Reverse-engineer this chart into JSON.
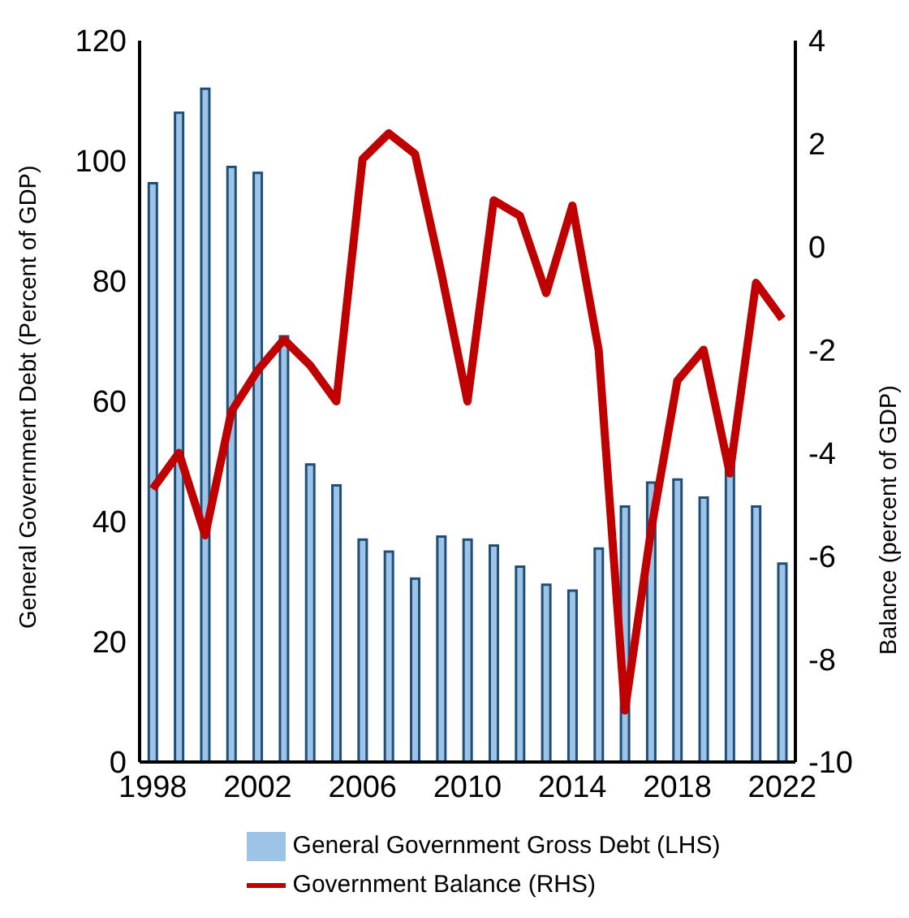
{
  "chart_data": {
    "type": "bar",
    "xlabel": null,
    "ylabel": "General Government Debt (Percent of GDP)",
    "y2label": "Balance (percent of GDP)",
    "categories": [
      "1998",
      null,
      null,
      null,
      "2002",
      null,
      null,
      null,
      "2006",
      null,
      null,
      null,
      "2010",
      null,
      null,
      null,
      "2014",
      null,
      null,
      null,
      "2018",
      null,
      null,
      null,
      "2022"
    ],
    "series": [
      {
        "name": "General Government Gross Debt (LHS)",
        "color": "#9dc3e6",
        "values": [
          96.3,
          108,
          112,
          99,
          98,
          70.8,
          49.5,
          46,
          37,
          35,
          30.5,
          37.5,
          37,
          36,
          32.5,
          29.5,
          28.5,
          35.5,
          42.5,
          46.5,
          47,
          44,
          52,
          42.5,
          33
        ]
      },
      {
        "name": "Government Balance (RHS)",
        "type": "line",
        "axis": "y2",
        "color": "#c00000",
        "values": [
          -4.7,
          -4.0,
          -5.6,
          -3.2,
          -2.4,
          -1.8,
          -2.3,
          -3.0,
          1.7,
          2.2,
          1.8,
          -0.5,
          -3.0,
          0.9,
          0.6,
          -0.9,
          0.8,
          -2.0,
          -9.0,
          -5.5,
          -2.6,
          -2.0,
          -4.4,
          -0.7,
          -1.4
        ]
      }
    ],
    "ylim": [
      0,
      120
    ],
    "yticks": [
      0,
      20,
      40,
      60,
      80,
      100,
      120
    ],
    "y2lim": [
      -10,
      4
    ],
    "y2ticks": [
      -10,
      -8,
      -6,
      -4,
      -2,
      0,
      2,
      4
    ],
    "grid": false,
    "legend": "bottom",
    "marker": "none",
    "line_style": "solid"
  }
}
